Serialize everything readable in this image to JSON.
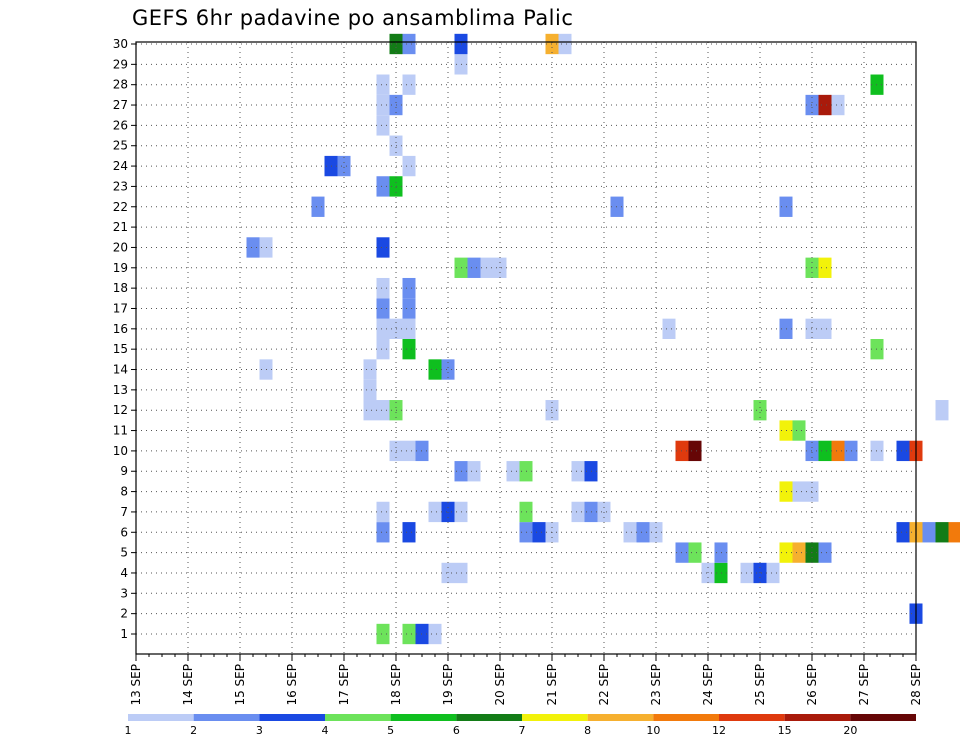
{
  "chart_data": {
    "type": "heatmap",
    "title": "GEFS 6hr padavine po ansamblima Palic",
    "xlabel": "",
    "ylabel": "",
    "x_ticks": [
      "13 SEP",
      "14 SEP",
      "15 SEP",
      "16 SEP",
      "17 SEP",
      "18 SEP",
      "19 SEP",
      "20 SEP",
      "21 SEP",
      "22 SEP",
      "23 SEP",
      "24 SEP",
      "25 SEP",
      "26 SEP",
      "27 SEP",
      "28 SEP"
    ],
    "x_range_days": [
      13,
      28
    ],
    "time_step_hours": 6,
    "y_ticks": [
      1,
      2,
      3,
      4,
      5,
      6,
      7,
      8,
      9,
      10,
      11,
      12,
      13,
      14,
      15,
      16,
      17,
      18,
      19,
      20,
      21,
      22,
      23,
      24,
      25,
      26,
      27,
      28,
      29,
      30
    ],
    "y_range": [
      1,
      30
    ],
    "grid": true,
    "colorbar": {
      "placement": "bottom",
      "labels": [
        "1",
        "2",
        "3",
        "4",
        "5",
        "6",
        "7",
        "8",
        "10",
        "12",
        "15",
        "20"
      ],
      "colors": [
        "#bcccf6",
        "#6a8ef0",
        "#1a49e2",
        "#6de35b",
        "#0fbf1f",
        "#137c17",
        "#f2f20a",
        "#f6b02f",
        "#f27a0c",
        "#df3a0e",
        "#a91a0b",
        "#660606"
      ]
    },
    "cells": [
      [
        1,
        17.75,
        3
      ],
      [
        1,
        18.25,
        3
      ],
      [
        1,
        18.5,
        2
      ],
      [
        1,
        18.75,
        0
      ],
      [
        2,
        28,
        2
      ],
      [
        4,
        19,
        0
      ],
      [
        4,
        19.25,
        0
      ],
      [
        4,
        24,
        0
      ],
      [
        4,
        24.25,
        4
      ],
      [
        4,
        24.75,
        0
      ],
      [
        4,
        25,
        2
      ],
      [
        4,
        25.25,
        0
      ],
      [
        5,
        23.5,
        1
      ],
      [
        5,
        23.75,
        3
      ],
      [
        5,
        24.25,
        1
      ],
      [
        5,
        25.5,
        6
      ],
      [
        5,
        25.75,
        7
      ],
      [
        5,
        26,
        5
      ],
      [
        5,
        26.25,
        1
      ],
      [
        6,
        17.75,
        1
      ],
      [
        6,
        18.25,
        2
      ],
      [
        6,
        20.5,
        1
      ],
      [
        6,
        20.75,
        2
      ],
      [
        6,
        21,
        0
      ],
      [
        6,
        22.5,
        0
      ],
      [
        6,
        22.75,
        1
      ],
      [
        6,
        23,
        0
      ],
      [
        6,
        27.75,
        2
      ],
      [
        6,
        28,
        7
      ],
      [
        6,
        28.25,
        1
      ],
      [
        6,
        28.5,
        5
      ],
      [
        6,
        28.75,
        8
      ],
      [
        7,
        17.75,
        0
      ],
      [
        7,
        18.75,
        0
      ],
      [
        7,
        19,
        2
      ],
      [
        7,
        19.25,
        0
      ],
      [
        7,
        20.5,
        3
      ],
      [
        7,
        21.5,
        0
      ],
      [
        7,
        21.75,
        1
      ],
      [
        7,
        22,
        0
      ],
      [
        8,
        25.5,
        6
      ],
      [
        8,
        25.75,
        0
      ],
      [
        8,
        26,
        0
      ],
      [
        9,
        19.25,
        1
      ],
      [
        9,
        19.5,
        0
      ],
      [
        9,
        20.25,
        0
      ],
      [
        9,
        20.5,
        3
      ],
      [
        9,
        21.5,
        0
      ],
      [
        9,
        21.75,
        2
      ],
      [
        10,
        18,
        0
      ],
      [
        10,
        18.25,
        0
      ],
      [
        10,
        18.5,
        1
      ],
      [
        10,
        23.5,
        9
      ],
      [
        10,
        23.75,
        11
      ],
      [
        10,
        26,
        1
      ],
      [
        10,
        26.25,
        4
      ],
      [
        10,
        26.5,
        8
      ],
      [
        10,
        26.75,
        1
      ],
      [
        10,
        27.25,
        0
      ],
      [
        10,
        27.75,
        2
      ],
      [
        10,
        28,
        9
      ],
      [
        11,
        25.5,
        6
      ],
      [
        11,
        25.75,
        3
      ],
      [
        12,
        17.5,
        0
      ],
      [
        12,
        17.75,
        0
      ],
      [
        12,
        18,
        3
      ],
      [
        12,
        21,
        0
      ],
      [
        12,
        25,
        3
      ],
      [
        12,
        28.5,
        0
      ],
      [
        13,
        17.5,
        0
      ],
      [
        14,
        15.5,
        0
      ],
      [
        14,
        17.5,
        0
      ],
      [
        14,
        18.75,
        4
      ],
      [
        14,
        19,
        1
      ],
      [
        15,
        17.75,
        0
      ],
      [
        15,
        18.25,
        4
      ],
      [
        15,
        27.25,
        3
      ],
      [
        16,
        17.75,
        0
      ],
      [
        16,
        18,
        0
      ],
      [
        16,
        18.25,
        0
      ],
      [
        16,
        23.25,
        0
      ],
      [
        16,
        25.5,
        1
      ],
      [
        16,
        26,
        0
      ],
      [
        16,
        26.25,
        0
      ],
      [
        17,
        17.75,
        1
      ],
      [
        17,
        18.25,
        1
      ],
      [
        18,
        17.75,
        0
      ],
      [
        18,
        18.25,
        1
      ],
      [
        19,
        19.25,
        3
      ],
      [
        19,
        19.5,
        1
      ],
      [
        19,
        19.75,
        0
      ],
      [
        19,
        20,
        0
      ],
      [
        19,
        26,
        3
      ],
      [
        19,
        26.25,
        6
      ],
      [
        20,
        15.25,
        1
      ],
      [
        20,
        15.5,
        0
      ],
      [
        20,
        17.75,
        2
      ],
      [
        22,
        16.5,
        1
      ],
      [
        22,
        22.25,
        1
      ],
      [
        22,
        25.5,
        1
      ],
      [
        23,
        17.75,
        1
      ],
      [
        23,
        18,
        4
      ],
      [
        24,
        16.75,
        2
      ],
      [
        24,
        17,
        1
      ],
      [
        24,
        18.25,
        0
      ],
      [
        25,
        18,
        0
      ],
      [
        26,
        17.75,
        0
      ],
      [
        27,
        17.75,
        0
      ],
      [
        27,
        18,
        1
      ],
      [
        27,
        26,
        1
      ],
      [
        27,
        26.25,
        10
      ],
      [
        27,
        26.5,
        0
      ],
      [
        28,
        17.75,
        0
      ],
      [
        28,
        18.25,
        0
      ],
      [
        28,
        27.25,
        4
      ],
      [
        29,
        19.25,
        0
      ],
      [
        30,
        18,
        5
      ],
      [
        30,
        18.25,
        1
      ],
      [
        30,
        19.25,
        2
      ],
      [
        30,
        21,
        7
      ],
      [
        30,
        21.25,
        0
      ]
    ]
  }
}
